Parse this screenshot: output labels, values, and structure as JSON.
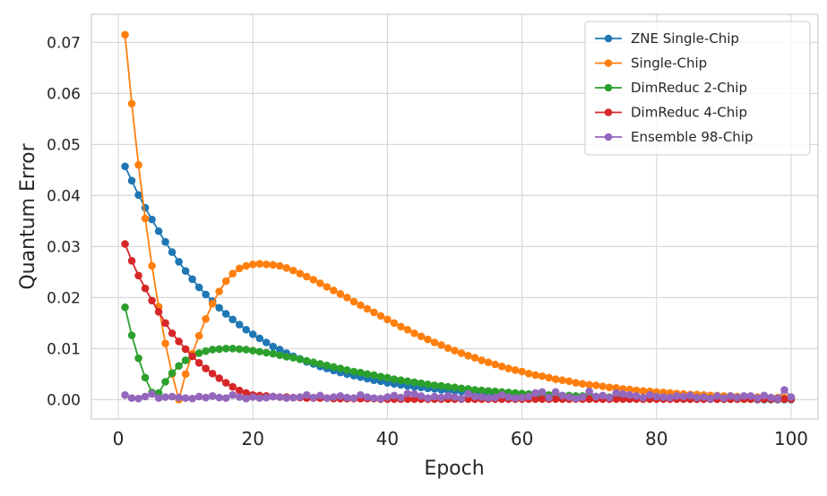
{
  "chart_data": {
    "type": "line",
    "title": "",
    "xlabel": "Epoch",
    "ylabel": "Quantum Error",
    "xlim": [
      -4,
      104
    ],
    "ylim": [
      -0.0038,
      0.0755
    ],
    "xticks": [
      0,
      20,
      40,
      60,
      80,
      100
    ],
    "xtick_labels": [
      "0",
      "20",
      "40",
      "60",
      "80",
      "100"
    ],
    "yticks": [
      0.0,
      0.01,
      0.02,
      0.03,
      0.04,
      0.05,
      0.06,
      0.07
    ],
    "ytick_labels": [
      "0.00",
      "0.01",
      "0.02",
      "0.03",
      "0.04",
      "0.05",
      "0.06",
      "0.07"
    ],
    "grid": true,
    "legend_position": "top-right",
    "x": [
      1,
      2,
      3,
      4,
      5,
      6,
      7,
      8,
      9,
      10,
      11,
      12,
      13,
      14,
      15,
      16,
      17,
      18,
      19,
      20,
      21,
      22,
      23,
      24,
      25,
      26,
      27,
      28,
      29,
      30,
      31,
      32,
      33,
      34,
      35,
      36,
      37,
      38,
      39,
      40,
      41,
      42,
      43,
      44,
      45,
      46,
      47,
      48,
      49,
      50,
      51,
      52,
      53,
      54,
      55,
      56,
      57,
      58,
      59,
      60,
      61,
      62,
      63,
      64,
      65,
      66,
      67,
      68,
      69,
      70,
      71,
      72,
      73,
      74,
      75,
      76,
      77,
      78,
      79,
      80,
      81,
      82,
      83,
      84,
      85,
      86,
      87,
      88,
      89,
      90,
      91,
      92,
      93,
      94,
      95,
      96,
      97,
      98,
      99,
      100
    ],
    "series": [
      {
        "name": "ZNE Single-Chip",
        "color": "#1f77b4",
        "values": [
          0.0457,
          0.0429,
          0.0401,
          0.0376,
          0.0353,
          0.033,
          0.0309,
          0.0289,
          0.027,
          0.0252,
          0.0236,
          0.022,
          0.0206,
          0.0193,
          0.018,
          0.0168,
          0.0157,
          0.0147,
          0.0137,
          0.0128,
          0.012,
          0.0112,
          0.0104,
          0.0098,
          0.0091,
          0.0085,
          0.008,
          0.0074,
          0.007,
          0.0065,
          0.0061,
          0.0057,
          0.0053,
          0.005,
          0.0047,
          0.0044,
          0.0041,
          0.0038,
          0.0036,
          0.0033,
          0.0031,
          0.0029,
          0.0027,
          0.0025,
          0.0024,
          0.0022,
          0.0021,
          0.0019,
          0.0018,
          0.0017,
          0.0016,
          0.0015,
          0.0014,
          0.0013,
          0.0012,
          0.0011,
          0.001,
          0.001,
          0.0009,
          0.0008,
          0.0008,
          0.0007,
          0.0007,
          0.0006,
          0.0006,
          0.0006,
          0.0005,
          0.0005,
          0.0005,
          0.0004,
          0.0004,
          0.0004,
          0.0003,
          0.0003,
          0.0003,
          0.0003,
          0.0003,
          0.0002,
          0.0002,
          0.0002,
          0.0002,
          0.0002,
          0.0002,
          0.0001,
          0.0001,
          0.0001,
          0.0001,
          0.0001,
          0.0001,
          0.0001,
          0.0001,
          0.0001,
          0.0001,
          0.0001,
          0.0,
          0.0,
          0.0,
          0.0,
          0.0,
          0.0
        ]
      },
      {
        "name": "Single-Chip",
        "color": "#ff7f0e",
        "values": [
          0.0715,
          0.058,
          0.046,
          0.0355,
          0.0262,
          0.0182,
          0.011,
          0.005,
          0.0,
          0.005,
          0.009,
          0.0125,
          0.0158,
          0.0188,
          0.0212,
          0.0232,
          0.0247,
          0.0257,
          0.0262,
          0.0265,
          0.0266,
          0.0265,
          0.0264,
          0.0262,
          0.0258,
          0.0253,
          0.0247,
          0.0241,
          0.0235,
          0.0228,
          0.0221,
          0.0214,
          0.0207,
          0.02,
          0.0192,
          0.0185,
          0.0178,
          0.0171,
          0.0164,
          0.0157,
          0.015,
          0.0143,
          0.0137,
          0.013,
          0.0124,
          0.0118,
          0.0112,
          0.0107,
          0.0101,
          0.0096,
          0.0091,
          0.0086,
          0.0082,
          0.0077,
          0.0073,
          0.0069,
          0.0065,
          0.0061,
          0.0058,
          0.0055,
          0.0051,
          0.0048,
          0.0046,
          0.0043,
          0.004,
          0.0038,
          0.0036,
          0.0033,
          0.0031,
          0.0029,
          0.0028,
          0.0026,
          0.0024,
          0.0023,
          0.0021,
          0.002,
          0.0018,
          0.0017,
          0.0016,
          0.0015,
          0.0014,
          0.0013,
          0.0012,
          0.0011,
          0.001,
          0.001,
          0.0009,
          0.0008,
          0.0008,
          0.0007,
          0.0007,
          0.0006,
          0.0006,
          0.0005,
          0.0005,
          0.0005,
          0.0004,
          0.0004,
          0.0004,
          0.0003
        ]
      },
      {
        "name": "DimReduc 2-Chip",
        "color": "#2ca02c",
        "values": [
          0.0181,
          0.0126,
          0.0081,
          0.0043,
          0.0014,
          0.0013,
          0.0035,
          0.0052,
          0.0066,
          0.0077,
          0.0085,
          0.0091,
          0.0095,
          0.0098,
          0.0099,
          0.01,
          0.01,
          0.0099,
          0.0098,
          0.0096,
          0.0094,
          0.0092,
          0.009,
          0.0087,
          0.0084,
          0.0082,
          0.0079,
          0.0076,
          0.0073,
          0.007,
          0.0067,
          0.0064,
          0.0061,
          0.0058,
          0.0055,
          0.0053,
          0.005,
          0.0048,
          0.0045,
          0.0043,
          0.004,
          0.0038,
          0.0036,
          0.0034,
          0.0032,
          0.003,
          0.0028,
          0.0027,
          0.0025,
          0.0024,
          0.0022,
          0.0021,
          0.0019,
          0.0018,
          0.0017,
          0.0016,
          0.0015,
          0.0014,
          0.0013,
          0.0012,
          0.0011,
          0.0011,
          0.001,
          0.0009,
          0.0009,
          0.0008,
          0.0008,
          0.0007,
          0.0007,
          0.0006,
          0.0006,
          0.0005,
          0.0005,
          0.0005,
          0.0004,
          0.0004,
          0.0004,
          0.0003,
          0.0003,
          0.0003,
          0.0003,
          0.0003,
          0.0002,
          0.0002,
          0.0002,
          0.0002,
          0.0002,
          0.0002,
          0.0001,
          0.0001,
          0.0001,
          0.0001,
          0.0001,
          0.0001,
          0.0001,
          0.0001,
          0.0001,
          0.0001,
          0.0001,
          0.0001
        ]
      },
      {
        "name": "DimReduc 4-Chip",
        "color": "#d62728",
        "values": [
          0.0305,
          0.0272,
          0.0243,
          0.0218,
          0.0194,
          0.0172,
          0.015,
          0.013,
          0.0114,
          0.0099,
          0.0085,
          0.0072,
          0.0061,
          0.0051,
          0.0042,
          0.0033,
          0.0025,
          0.0018,
          0.0013,
          0.0009,
          0.0008,
          0.0007,
          0.0006,
          0.0005,
          0.0005,
          0.0004,
          0.0004,
          0.0003,
          0.0003,
          0.0003,
          0.0003,
          0.0002,
          0.0002,
          0.0002,
          0.0002,
          0.0002,
          0.0002,
          0.0002,
          0.0001,
          0.0001,
          0.0001,
          0.0001,
          0.0001,
          0.0001,
          0.0001,
          0.0001,
          0.0001,
          0.0001,
          0.0001,
          0.0001,
          0.0001,
          0.0001,
          0.0001,
          0.0001,
          0.0001,
          0.0001,
          0.0001,
          0.0001,
          0.0001,
          0.0001,
          0.0001,
          0.0001,
          0.0001,
          0.0001,
          0.0001,
          0.0001,
          0.0001,
          0.0001,
          0.0001,
          0.0001,
          0.0001,
          0.0001,
          0.0001,
          0.0001,
          0.0001,
          0.0001,
          0.0001,
          0.0001,
          0.0001,
          0.0001,
          0.0001,
          0.0001,
          0.0001,
          0.0001,
          0.0001,
          0.0001,
          0.0001,
          0.0001,
          0.0001,
          0.0001,
          0.0001,
          0.0001,
          0.0001,
          0.0001,
          0.0001,
          0.0001,
          0.0001,
          0.0001,
          0.0001,
          0.0001
        ]
      },
      {
        "name": "Ensemble 98-Chip",
        "color": "#9467bd",
        "values": [
          0.0009,
          0.0003,
          0.0002,
          0.0006,
          0.0011,
          0.0003,
          0.0005,
          0.0006,
          0.0004,
          0.0003,
          0.0002,
          0.0006,
          0.0004,
          0.0007,
          0.0004,
          0.0003,
          0.0009,
          0.0005,
          0.0002,
          0.0005,
          0.0003,
          0.0004,
          0.0006,
          0.0005,
          0.0003,
          0.0004,
          0.0005,
          0.0009,
          0.0004,
          0.0008,
          0.0003,
          0.0005,
          0.0007,
          0.0004,
          0.0003,
          0.0009,
          0.0005,
          0.0003,
          0.0002,
          0.0005,
          0.0008,
          0.0004,
          0.0012,
          0.0011,
          0.0007,
          0.0003,
          0.0006,
          0.0004,
          0.0007,
          0.0005,
          0.0002,
          0.0011,
          0.0006,
          0.0005,
          0.0003,
          0.0004,
          0.0009,
          0.0005,
          0.0003,
          0.0004,
          0.0006,
          0.0013,
          0.0015,
          0.0004,
          0.0015,
          0.0008,
          0.0005,
          0.0002,
          0.0005,
          0.0016,
          0.0006,
          0.0008,
          0.0004,
          0.0013,
          0.0011,
          0.0009,
          0.0007,
          0.0004,
          0.0009,
          0.0006,
          0.0005,
          0.0004,
          0.0007,
          0.0006,
          0.0008,
          0.0004,
          0.0005,
          0.0002,
          0.0007,
          0.0003,
          0.0007,
          0.0004,
          0.0007,
          0.0007,
          0.0003,
          0.0008,
          0.0004,
          0.0002,
          0.0019,
          0.0005
        ]
      }
    ]
  }
}
